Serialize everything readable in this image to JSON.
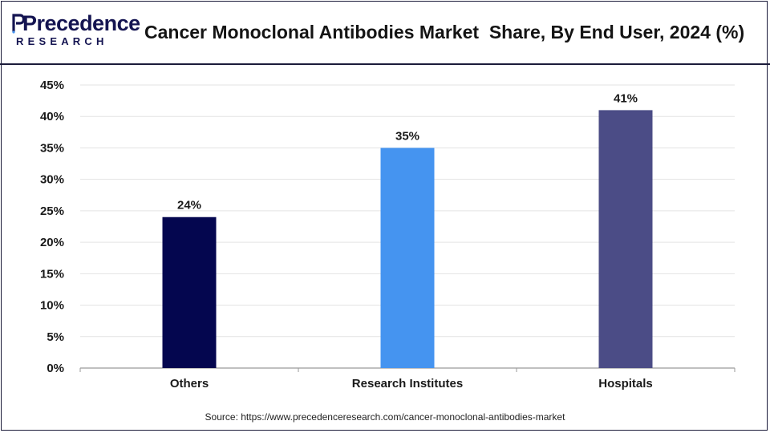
{
  "brand": {
    "name_top": "Precedence",
    "name_bottom": "RESEARCH",
    "color": "#141451"
  },
  "header": {
    "title": "Cancer Monoclonal Antibodies Market  Share, By End User, 2024 (%)"
  },
  "footer": {
    "source_label": "Source:",
    "source_url": "https://www.precedenceresearch.com/cancer-monoclonal-antibodies-market"
  },
  "chart_data": {
    "type": "bar",
    "title": "Cancer Monoclonal Antibodies Market  Share, By End User, 2024 (%)",
    "categories": [
      "Others",
      "Research Institutes",
      "Hospitals"
    ],
    "values": [
      24,
      35,
      41
    ],
    "data_labels": [
      "24%",
      "35%",
      "41%"
    ],
    "colors": [
      "#04064f",
      "#4594f0",
      "#4b4c86"
    ],
    "ylim": [
      0,
      45
    ],
    "yticks": [
      0,
      5,
      10,
      15,
      20,
      25,
      30,
      35,
      40,
      45
    ],
    "ytick_labels": [
      "0%",
      "5%",
      "10%",
      "15%",
      "20%",
      "25%",
      "30%",
      "35%",
      "40%",
      "45%"
    ],
    "xlabel": "",
    "ylabel": "",
    "grid": true,
    "legend": "none"
  }
}
